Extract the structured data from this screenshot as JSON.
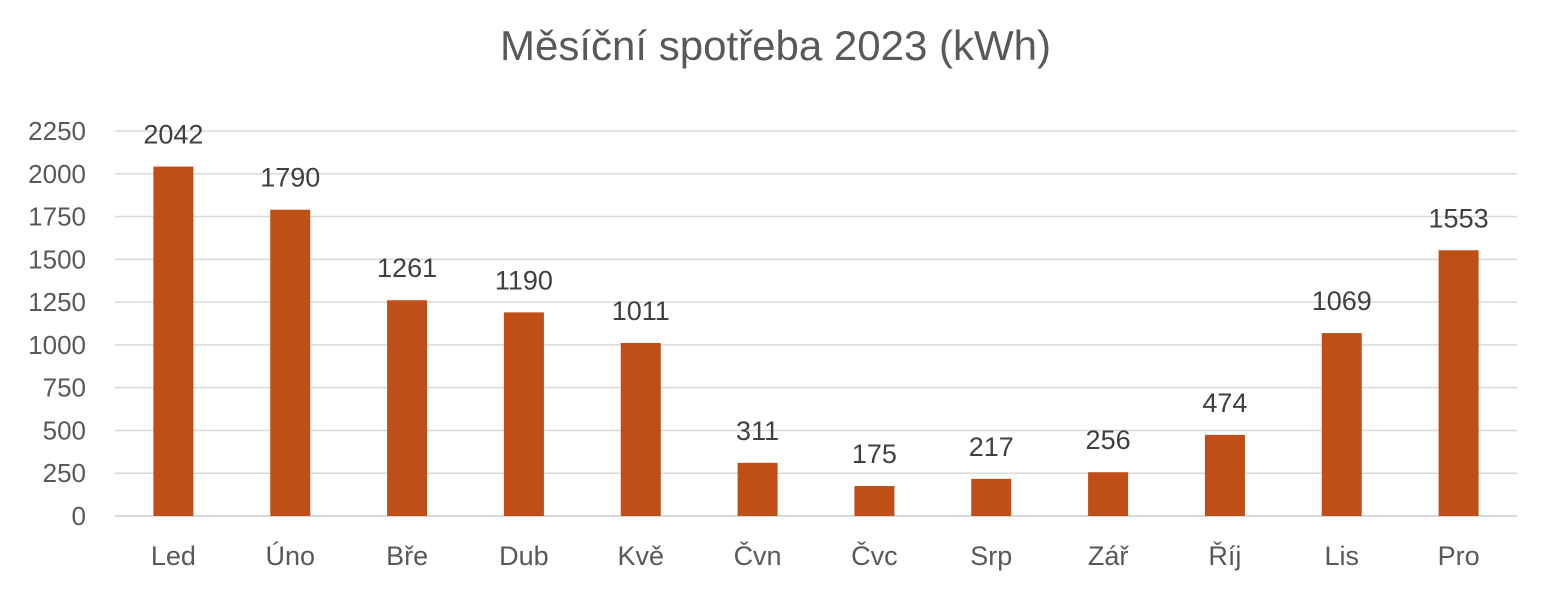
{
  "colors": {
    "bar": "#C0504D",
    "bar_fill": "#BF4F16",
    "grid": "#D9D9D9",
    "axis_text": "#595959",
    "label_text": "#404040"
  },
  "chart_data": {
    "type": "bar",
    "title": "Měsíční spotřeba 2023 (kWh)",
    "xlabel": "",
    "ylabel": "",
    "categories": [
      "Led",
      "Úno",
      "Bře",
      "Dub",
      "Kvě",
      "Čvn",
      "Čvc",
      "Srp",
      "Zář",
      "Říj",
      "Lis",
      "Pro"
    ],
    "values": [
      2042,
      1790,
      1261,
      1190,
      1011,
      311,
      175,
      217,
      256,
      474,
      1069,
      1553
    ],
    "ylim": [
      0,
      2250
    ],
    "yticks": [
      "0",
      "250",
      "500",
      "750",
      "1000",
      "1250",
      "1500",
      "1750",
      "2000",
      "2250"
    ],
    "data_labels": [
      "2042",
      "1790",
      "1261",
      "1190",
      "1011",
      "311",
      "175",
      "217",
      "256",
      "474",
      "1069",
      "1553"
    ],
    "grid": true,
    "legend": "none"
  }
}
